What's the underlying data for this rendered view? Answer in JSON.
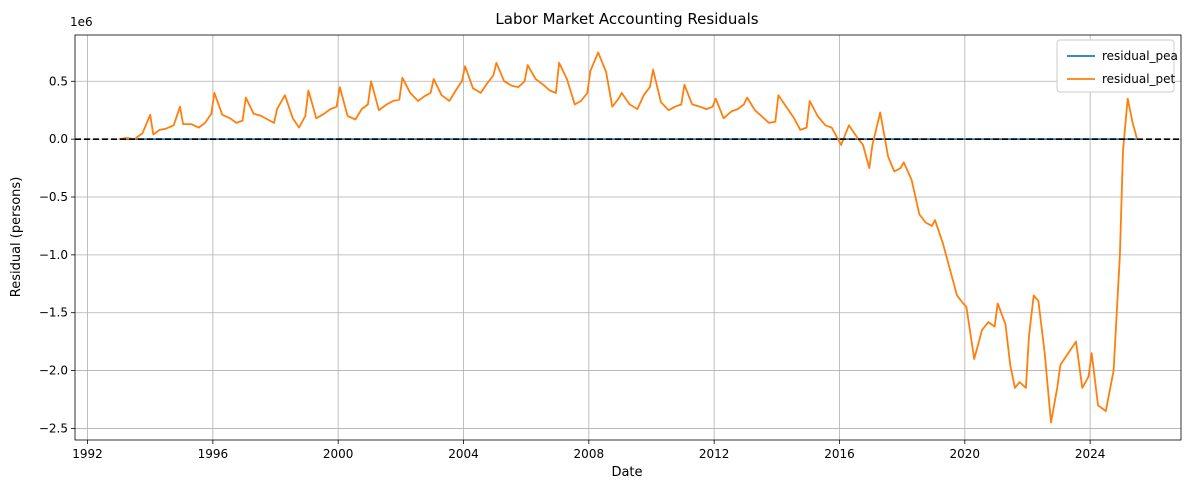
{
  "chart_data": {
    "type": "line",
    "title": "Labor Market Accounting Residuals",
    "xlabel": "Date",
    "ylabel": "Residual (persons)",
    "y_scale_label": "1e6",
    "xlim": [
      1991.6,
      2026.9
    ],
    "ylim": [
      -2.6,
      0.9
    ],
    "x_ticks": [
      1992,
      1996,
      2000,
      2004,
      2008,
      2012,
      2016,
      2020,
      2024
    ],
    "y_ticks": [
      -2.5,
      -2.0,
      -1.5,
      -1.0,
      -0.5,
      0.0,
      0.5
    ],
    "y_tick_labels": [
      "−2.5",
      "−2.0",
      "−1.5",
      "−1.0",
      "−0.5",
      "0.0",
      "0.5"
    ],
    "grid": true,
    "legend_position": "top-right",
    "reference_line": {
      "y": 0,
      "style": "dashed",
      "color": "#000000"
    },
    "series": [
      {
        "name": "residual_pea",
        "color": "#1f77b4",
        "x": [
          1993.0,
          2025.5
        ],
        "y": [
          0.0,
          0.0
        ]
      },
      {
        "name": "residual_pet",
        "color": "#ff7f0e",
        "x": [
          1993.0,
          1993.25,
          1993.5,
          1993.75,
          1994.0,
          1994.1,
          1994.3,
          1994.5,
          1994.75,
          1994.95,
          1995.05,
          1995.3,
          1995.55,
          1995.75,
          1995.95,
          1996.05,
          1996.3,
          1996.55,
          1996.75,
          1996.95,
          1997.05,
          1997.3,
          1997.55,
          1997.75,
          1997.95,
          1998.05,
          1998.3,
          1998.55,
          1998.75,
          1998.95,
          1999.05,
          1999.3,
          1999.55,
          1999.75,
          1999.95,
          2000.05,
          2000.3,
          2000.55,
          2000.75,
          2000.95,
          2001.05,
          2001.3,
          2001.55,
          2001.75,
          2001.95,
          2002.05,
          2002.3,
          2002.55,
          2002.75,
          2002.95,
          2003.05,
          2003.3,
          2003.55,
          2003.75,
          2003.95,
          2004.05,
          2004.3,
          2004.55,
          2004.75,
          2004.95,
          2005.05,
          2005.3,
          2005.55,
          2005.75,
          2005.95,
          2006.05,
          2006.3,
          2006.55,
          2006.75,
          2006.95,
          2007.05,
          2007.3,
          2007.55,
          2007.75,
          2007.95,
          2008.05,
          2008.3,
          2008.55,
          2008.75,
          2008.95,
          2009.05,
          2009.3,
          2009.55,
          2009.75,
          2009.95,
          2010.05,
          2010.3,
          2010.55,
          2010.75,
          2010.95,
          2011.05,
          2011.3,
          2011.55,
          2011.75,
          2011.95,
          2012.05,
          2012.3,
          2012.55,
          2012.75,
          2012.95,
          2013.05,
          2013.3,
          2013.55,
          2013.75,
          2013.95,
          2014.05,
          2014.3,
          2014.55,
          2014.75,
          2014.95,
          2015.05,
          2015.3,
          2015.55,
          2015.75,
          2015.95,
          2016.05,
          2016.3,
          2016.55,
          2016.75,
          2016.95,
          2017.05,
          2017.3,
          2017.55,
          2017.75,
          2017.95,
          2018.05,
          2018.3,
          2018.55,
          2018.75,
          2018.95,
          2019.05,
          2019.3,
          2019.55,
          2019.75,
          2019.95,
          2020.05,
          2020.3,
          2020.55,
          2020.75,
          2020.95,
          2021.05,
          2021.3,
          2021.45,
          2021.6,
          2021.75,
          2021.95,
          2022.05,
          2022.2,
          2022.35,
          2022.55,
          2022.75,
          2022.95,
          2023.05,
          2023.3,
          2023.55,
          2023.75,
          2023.95,
          2024.05,
          2024.25,
          2024.5,
          2024.75,
          2024.95,
          2025.05,
          2025.2,
          2025.35,
          2025.5
        ],
        "y": [
          0.0,
          0.01,
          0.0,
          0.05,
          0.21,
          0.04,
          0.08,
          0.09,
          0.12,
          0.28,
          0.13,
          0.13,
          0.1,
          0.14,
          0.22,
          0.4,
          0.21,
          0.18,
          0.14,
          0.16,
          0.36,
          0.22,
          0.2,
          0.17,
          0.14,
          0.26,
          0.38,
          0.18,
          0.1,
          0.2,
          0.42,
          0.18,
          0.22,
          0.26,
          0.28,
          0.45,
          0.2,
          0.17,
          0.26,
          0.3,
          0.5,
          0.25,
          0.3,
          0.33,
          0.34,
          0.53,
          0.4,
          0.33,
          0.37,
          0.4,
          0.52,
          0.38,
          0.33,
          0.42,
          0.5,
          0.63,
          0.44,
          0.4,
          0.48,
          0.55,
          0.66,
          0.5,
          0.46,
          0.45,
          0.5,
          0.64,
          0.52,
          0.47,
          0.42,
          0.4,
          0.66,
          0.52,
          0.3,
          0.33,
          0.4,
          0.59,
          0.75,
          0.58,
          0.28,
          0.35,
          0.4,
          0.3,
          0.26,
          0.38,
          0.45,
          0.6,
          0.32,
          0.25,
          0.28,
          0.3,
          0.47,
          0.3,
          0.28,
          0.26,
          0.28,
          0.35,
          0.18,
          0.24,
          0.26,
          0.3,
          0.36,
          0.25,
          0.19,
          0.14,
          0.15,
          0.38,
          0.28,
          0.18,
          0.08,
          0.1,
          0.33,
          0.2,
          0.12,
          0.1,
          0.0,
          -0.05,
          0.12,
          0.02,
          -0.05,
          -0.25,
          -0.05,
          0.23,
          -0.15,
          -0.28,
          -0.25,
          -0.2,
          -0.35,
          -0.65,
          -0.72,
          -0.75,
          -0.7,
          -0.9,
          -1.15,
          -1.35,
          -1.42,
          -1.45,
          -1.9,
          -1.65,
          -1.58,
          -1.62,
          -1.42,
          -1.6,
          -1.95,
          -2.15,
          -2.1,
          -2.15,
          -1.7,
          -1.35,
          -1.4,
          -1.85,
          -2.45,
          -2.15,
          -1.95,
          -1.85,
          -1.75,
          -2.15,
          -2.05,
          -1.85,
          -2.3,
          -2.35,
          -2.0,
          -1.0,
          -0.1,
          0.35,
          0.15,
          0.0
        ]
      }
    ]
  }
}
